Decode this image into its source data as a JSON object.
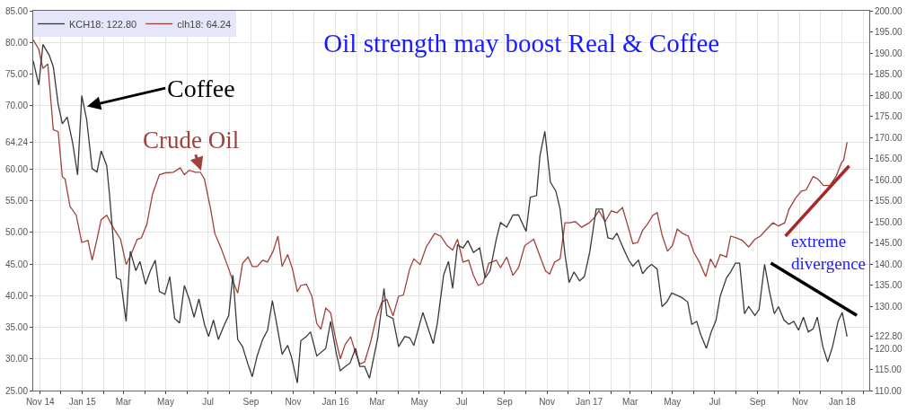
{
  "chart_data": {
    "type": "line",
    "title": "Oil strength may boost Real & Coffee",
    "xlim": [
      "2014-10-22",
      "2018-02-09"
    ],
    "xticks": [
      {
        "value": "2014-11-01",
        "label": "Nov 14"
      },
      {
        "value": "2014-12-01",
        "label": null
      },
      {
        "value": "2015-01-01",
        "label": "Jan 15"
      },
      {
        "value": "2015-02-01",
        "label": null
      },
      {
        "value": "2015-03-01",
        "label": "Mar"
      },
      {
        "value": "2015-04-01",
        "label": null
      },
      {
        "value": "2015-05-01",
        "label": "May"
      },
      {
        "value": "2015-06-01",
        "label": null
      },
      {
        "value": "2015-07-01",
        "label": "Jul"
      },
      {
        "value": "2015-08-01",
        "label": null
      },
      {
        "value": "2015-09-01",
        "label": "Sep"
      },
      {
        "value": "2015-10-01",
        "label": null
      },
      {
        "value": "2015-11-01",
        "label": "Nov"
      },
      {
        "value": "2015-12-01",
        "label": null
      },
      {
        "value": "2016-01-01",
        "label": "Jan 16"
      },
      {
        "value": "2016-02-01",
        "label": null
      },
      {
        "value": "2016-03-01",
        "label": "Mar"
      },
      {
        "value": "2016-04-01",
        "label": null
      },
      {
        "value": "2016-05-01",
        "label": "May"
      },
      {
        "value": "2016-06-01",
        "label": null
      },
      {
        "value": "2016-07-01",
        "label": "Jul"
      },
      {
        "value": "2016-08-01",
        "label": null
      },
      {
        "value": "2016-09-01",
        "label": "Sep"
      },
      {
        "value": "2016-10-01",
        "label": null
      },
      {
        "value": "2016-11-01",
        "label": "Nov"
      },
      {
        "value": "2016-12-01",
        "label": null
      },
      {
        "value": "2017-01-01",
        "label": "Jan 17"
      },
      {
        "value": "2017-02-01",
        "label": null
      },
      {
        "value": "2017-03-01",
        "label": "Mar"
      },
      {
        "value": "2017-04-01",
        "label": null
      },
      {
        "value": "2017-05-01",
        "label": "May"
      },
      {
        "value": "2017-06-01",
        "label": null
      },
      {
        "value": "2017-07-01",
        "label": "Jul"
      },
      {
        "value": "2017-08-01",
        "label": null
      },
      {
        "value": "2017-09-01",
        "label": "Sep"
      },
      {
        "value": "2017-10-01",
        "label": null
      },
      {
        "value": "2017-11-01",
        "label": "Nov"
      },
      {
        "value": "2017-12-01",
        "label": null
      },
      {
        "value": "2018-01-01",
        "label": "Jan 18"
      },
      {
        "value": "2018-02-01",
        "label": null
      }
    ],
    "ylim": [
      25,
      85
    ],
    "yticks": [
      {
        "value": 25,
        "label": "25.00"
      },
      {
        "value": 30,
        "label": "30.00"
      },
      {
        "value": 35,
        "label": "35.00"
      },
      {
        "value": 40,
        "label": "40.00"
      },
      {
        "value": 45,
        "label": "45.00"
      },
      {
        "value": 50,
        "label": "50.00"
      },
      {
        "value": 55,
        "label": "55.00"
      },
      {
        "value": 60,
        "label": "60.00"
      },
      {
        "value": 64.24,
        "label": "64.24"
      },
      {
        "value": 70,
        "label": "70.00"
      },
      {
        "value": 75,
        "label": "75.00"
      },
      {
        "value": 80,
        "label": "80.00"
      },
      {
        "value": 85,
        "label": "85.00"
      }
    ],
    "y2lim": [
      110,
      200
    ],
    "y2ticks": [
      {
        "value": 110,
        "label": "110.00"
      },
      {
        "value": 115,
        "label": "115.00"
      },
      {
        "value": 120,
        "label": "120.00"
      },
      {
        "value": 122.8,
        "label": "122.80"
      },
      {
        "value": 130,
        "label": "130.00"
      },
      {
        "value": 135,
        "label": "135.00"
      },
      {
        "value": 140,
        "label": "140.00"
      },
      {
        "value": 145,
        "label": "145.00"
      },
      {
        "value": 150,
        "label": "150.00"
      },
      {
        "value": 155,
        "label": "155.00"
      },
      {
        "value": 160,
        "label": "160.00"
      },
      {
        "value": 165,
        "label": "165.00"
      },
      {
        "value": 170,
        "label": "170.00"
      },
      {
        "value": 175,
        "label": "175.00"
      },
      {
        "value": 180,
        "label": "180.00"
      },
      {
        "value": 185,
        "label": "185.00"
      },
      {
        "value": 190,
        "label": "190.00"
      },
      {
        "value": 195,
        "label": "195.00"
      },
      {
        "value": 200,
        "label": "200.00"
      }
    ],
    "grid": true,
    "legend": "top left",
    "annotations": [
      {
        "text": "Coffee",
        "x": "2015-01-04",
        "y": 69.8
      },
      {
        "text": "Crude Oil",
        "x": "2015-06-24",
        "y": 58.8
      },
      "extreme divergence"
    ],
    "series": [
      {
        "name": "KCH18: 122.80",
        "color": "#3a3a3a",
        "axis": "y2",
        "x": [
          "2014-10-22",
          "2014-10-30",
          "2014-11-05",
          "2014-11-14",
          "2014-11-20",
          "2014-11-27",
          "2014-12-03",
          "2014-12-10",
          "2014-12-18",
          "2014-12-25",
          "2014-12-31",
          "2015-01-07",
          "2015-01-15",
          "2015-01-22",
          "2015-01-28",
          "2015-02-05",
          "2015-02-09",
          "2015-02-19",
          "2015-02-25",
          "2015-03-05",
          "2015-03-11",
          "2015-03-19",
          "2015-03-25",
          "2015-04-02",
          "2015-04-09",
          "2015-04-16",
          "2015-04-22",
          "2015-04-30",
          "2015-05-07",
          "2015-05-14",
          "2015-05-21",
          "2015-05-28",
          "2015-06-04",
          "2015-06-11",
          "2015-06-18",
          "2015-06-26",
          "2015-07-02",
          "2015-07-09",
          "2015-07-16",
          "2015-07-24",
          "2015-07-31",
          "2015-08-06",
          "2015-08-13",
          "2015-08-20",
          "2015-08-28",
          "2015-09-03",
          "2015-09-10",
          "2015-09-18",
          "2015-09-25",
          "2015-10-02",
          "2015-10-08",
          "2015-10-16",
          "2015-10-24",
          "2015-10-29",
          "2015-11-07",
          "2015-11-12",
          "2015-11-20",
          "2015-11-26",
          "2015-12-05",
          "2015-12-18",
          "2015-12-25",
          "2016-01-02",
          "2016-01-08",
          "2016-01-15",
          "2016-01-22",
          "2016-01-30",
          "2016-02-05",
          "2016-02-12",
          "2016-02-19",
          "2016-03-02",
          "2016-03-11",
          "2016-03-15",
          "2016-03-24",
          "2016-04-01",
          "2016-04-10",
          "2016-04-17",
          "2016-04-23",
          "2016-05-06",
          "2016-05-21",
          "2016-05-27",
          "2016-06-05",
          "2016-06-12",
          "2016-06-18",
          "2016-06-25",
          "2016-07-03",
          "2016-07-10",
          "2016-07-18",
          "2016-07-27",
          "2016-08-04",
          "2016-08-11",
          "2016-08-20",
          "2016-08-26",
          "2016-09-04",
          "2016-09-13",
          "2016-09-21",
          "2016-10-02",
          "2016-10-08",
          "2016-10-17",
          "2016-10-22",
          "2016-10-29",
          "2016-11-06",
          "2016-11-14",
          "2016-11-20",
          "2016-11-27",
          "2016-12-03",
          "2016-12-10",
          "2016-12-18",
          "2016-12-25",
          "2017-01-02",
          "2017-01-11",
          "2017-01-20",
          "2017-01-28",
          "2017-02-04",
          "2017-02-10",
          "2017-02-19",
          "2017-02-27",
          "2017-03-05",
          "2017-03-13",
          "2017-03-19",
          "2017-03-26",
          "2017-04-01",
          "2017-04-09",
          "2017-04-16",
          "2017-04-23",
          "2017-04-30",
          "2017-05-14",
          "2017-05-23",
          "2017-05-29",
          "2017-06-05",
          "2017-06-11",
          "2017-06-19",
          "2017-06-26",
          "2017-07-03",
          "2017-07-09",
          "2017-07-18",
          "2017-07-24",
          "2017-07-31",
          "2017-08-06",
          "2017-08-13",
          "2017-08-19",
          "2017-08-28",
          "2017-09-03",
          "2017-09-11",
          "2017-09-18",
          "2017-09-25",
          "2017-10-01",
          "2017-10-09",
          "2017-10-16",
          "2017-10-23",
          "2017-10-30",
          "2017-11-06",
          "2017-11-13",
          "2017-11-20",
          "2017-11-26",
          "2017-12-04",
          "2017-12-11",
          "2017-12-18",
          "2017-12-26",
          "2018-01-01",
          "2018-01-08"
        ],
        "values": [
          188.1,
          182.4,
          192.0,
          189.5,
          186.7,
          177.8,
          173.2,
          174.8,
          168.6,
          161.1,
          179.9,
          174.3,
          162.6,
          161.8,
          166.8,
          163.3,
          156.5,
          136.7,
          136.3,
          126.4,
          143.0,
          138.4,
          140.6,
          135.2,
          138.4,
          140.9,
          133.5,
          132.8,
          137.0,
          127.1,
          126.0,
          134.9,
          131.7,
          127.4,
          131.7,
          125.7,
          122.8,
          126.7,
          122.1,
          125.3,
          127.8,
          137.4,
          122.1,
          120.4,
          116.1,
          113.3,
          118.2,
          122.1,
          124.3,
          131.3,
          126.0,
          118.6,
          120.7,
          118.2,
          111.8,
          121.8,
          122.8,
          123.9,
          118.2,
          120.0,
          126.4,
          118.9,
          114.7,
          115.7,
          116.5,
          120.0,
          115.7,
          115.7,
          112.9,
          122.5,
          134.2,
          127.8,
          127.1,
          120.4,
          122.8,
          122.5,
          120.7,
          128.5,
          121.1,
          126.0,
          137.4,
          140.6,
          134.2,
          144.5,
          143.8,
          145.5,
          142.7,
          143.8,
          136.7,
          138.4,
          145.9,
          149.8,
          148.7,
          151.6,
          151.6,
          147.7,
          155.8,
          156.2,
          165.7,
          171.4,
          159.4,
          157.2,
          153.0,
          142.3,
          135.6,
          138.1,
          136.0,
          137.0,
          143.0,
          153.0,
          153.0,
          146.2,
          145.9,
          147.3,
          143.8,
          140.9,
          139.5,
          140.9,
          137.7,
          139.1,
          139.9,
          138.8,
          129.9,
          131.0,
          133.1,
          132.1,
          131.0,
          125.7,
          126.4,
          123.2,
          120.0,
          123.9,
          126.7,
          132.4,
          136.7,
          138.1,
          140.2,
          140.2,
          128.2,
          129.9,
          127.8,
          129.2,
          139.9,
          133.5,
          128.2,
          129.9,
          126.7,
          125.7,
          126.4,
          124.3,
          127.4,
          123.9,
          124.6,
          127.4,
          120.4,
          116.8,
          120.4,
          126.4,
          128.5,
          122.8
        ]
      },
      {
        "name": "clh18: 64.24",
        "color": "#a0413a",
        "x": [
          "2014-10-22",
          "2014-10-30",
          "2014-11-05",
          "2014-11-12",
          "2014-11-20",
          "2014-11-27",
          "2014-12-03",
          "2014-12-07",
          "2014-12-14",
          "2014-12-23",
          "2014-12-31",
          "2015-01-09",
          "2015-01-15",
          "2015-01-22",
          "2015-01-28",
          "2015-02-05",
          "2015-02-14",
          "2015-02-25",
          "2015-03-05",
          "2015-03-12",
          "2015-03-21",
          "2015-03-27",
          "2015-04-04",
          "2015-04-12",
          "2015-04-22",
          "2015-05-01",
          "2015-05-12",
          "2015-05-22",
          "2015-05-28",
          "2015-06-04",
          "2015-06-13",
          "2015-06-20",
          "2015-06-26",
          "2015-07-05",
          "2015-07-11",
          "2015-07-20",
          "2015-07-31",
          "2015-08-06",
          "2015-08-13",
          "2015-08-20",
          "2015-08-28",
          "2015-09-03",
          "2015-09-10",
          "2015-09-18",
          "2015-09-25",
          "2015-10-03",
          "2015-10-10",
          "2015-10-16",
          "2015-10-24",
          "2015-10-31",
          "2015-11-07",
          "2015-11-12",
          "2015-11-20",
          "2015-11-28",
          "2015-12-05",
          "2015-12-11",
          "2015-12-18",
          "2015-12-25",
          "2016-01-02",
          "2016-01-08",
          "2016-01-15",
          "2016-01-23",
          "2016-01-30",
          "2016-02-05",
          "2016-02-12",
          "2016-02-21",
          "2016-02-29",
          "2016-03-08",
          "2016-03-15",
          "2016-03-24",
          "2016-04-01",
          "2016-04-08",
          "2016-04-17",
          "2016-04-23",
          "2016-05-02",
          "2016-05-11",
          "2016-05-23",
          "2016-06-01",
          "2016-06-10",
          "2016-06-18",
          "2016-06-25",
          "2016-07-03",
          "2016-07-11",
          "2016-07-18",
          "2016-07-25",
          "2016-08-01",
          "2016-08-09",
          "2016-08-20",
          "2016-08-26",
          "2016-09-04",
          "2016-09-13",
          "2016-09-21",
          "2016-09-30",
          "2016-10-13",
          "2016-10-21",
          "2016-10-30",
          "2016-11-05",
          "2016-11-12",
          "2016-11-20",
          "2016-11-27",
          "2016-12-04",
          "2016-12-12",
          "2016-12-21",
          "2017-01-01",
          "2017-01-09",
          "2017-01-15",
          "2017-01-24",
          "2017-02-02",
          "2017-02-10",
          "2017-02-18",
          "2017-02-25",
          "2017-03-05",
          "2017-03-12",
          "2017-03-19",
          "2017-03-26",
          "2017-04-03",
          "2017-04-09",
          "2017-04-16",
          "2017-04-24",
          "2017-05-01",
          "2017-05-08",
          "2017-05-16",
          "2017-05-24",
          "2017-06-01",
          "2017-06-09",
          "2017-06-18",
          "2017-06-25",
          "2017-07-02",
          "2017-07-09",
          "2017-07-18",
          "2017-07-24",
          "2017-08-02",
          "2017-08-10",
          "2017-08-19",
          "2017-08-28",
          "2017-09-05",
          "2017-09-14",
          "2017-09-23",
          "2017-10-01",
          "2017-10-10",
          "2017-10-16",
          "2017-10-25",
          "2017-11-03",
          "2017-11-10",
          "2017-11-20",
          "2017-11-27",
          "2017-12-05",
          "2017-12-14",
          "2017-12-23",
          "2017-12-31",
          "2018-01-03",
          "2018-01-08"
        ],
        "values": [
          80.4,
          78.9,
          75.9,
          76.6,
          66.2,
          65.9,
          58.8,
          58.4,
          54.1,
          52.7,
          48.4,
          48.7,
          45.6,
          48.9,
          52.0,
          52.7,
          50.8,
          48.9,
          44.9,
          46.5,
          48.9,
          49.1,
          51.3,
          56.0,
          59.1,
          59.4,
          59.5,
          60.2,
          59.1,
          59.8,
          59.5,
          59.5,
          58.4,
          53.6,
          49.8,
          47.5,
          44.2,
          42.3,
          40.4,
          45.1,
          46.1,
          44.6,
          44.6,
          45.6,
          45.3,
          47.0,
          49.4,
          44.6,
          46.5,
          44.2,
          40.6,
          41.6,
          41.8,
          39.9,
          35.6,
          34.7,
          38.0,
          37.3,
          32.8,
          30.0,
          32.3,
          33.5,
          30.9,
          29.2,
          29.5,
          32.8,
          36.6,
          39.0,
          39.4,
          36.8,
          39.9,
          40.1,
          44.2,
          45.8,
          44.9,
          47.7,
          49.8,
          49.4,
          47.9,
          47.2,
          48.9,
          45.3,
          45.6,
          43.2,
          41.6,
          42.0,
          45.1,
          45.6,
          44.4,
          46.1,
          43.2,
          44.4,
          47.9,
          48.9,
          46.5,
          43.9,
          43.4,
          45.3,
          45.8,
          51.5,
          51.5,
          51.7,
          50.8,
          51.5,
          52.4,
          53.4,
          51.7,
          53.4,
          53.1,
          53.9,
          51.3,
          48.2,
          48.4,
          50.3,
          51.3,
          52.7,
          53.1,
          49.6,
          47.0,
          47.9,
          50.5,
          49.8,
          49.4,
          46.8,
          45.3,
          43.0,
          45.8,
          44.4,
          46.5,
          46.1,
          49.4,
          49.1,
          48.7,
          47.7,
          48.9,
          49.4,
          50.5,
          51.5,
          51.0,
          51.5,
          53.6,
          55.3,
          56.5,
          56.7,
          58.8,
          58.4,
          57.4,
          57.4,
          58.8,
          61.0,
          61.4,
          64.24
        ]
      },
      {
        "type": "line",
        "color": "#a52a2a",
        "x": [
          "2017-10-11",
          "2018-01-11"
        ],
        "values": [
          49.4,
          60.5
        ]
      },
      {
        "type": "line",
        "color": "#000000",
        "axis": "y2",
        "x": [
          "2017-09-20",
          "2018-01-22"
        ],
        "values": [
          140.2,
          127.8
        ]
      }
    ]
  }
}
